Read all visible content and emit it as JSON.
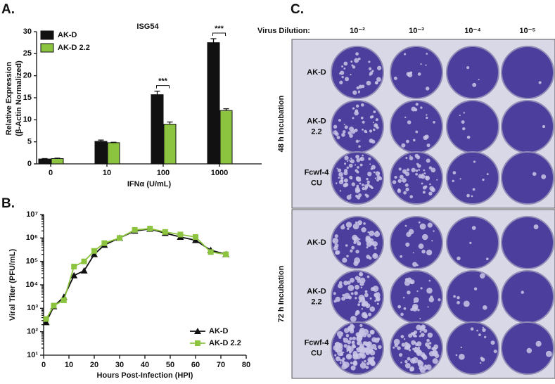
{
  "chart_data": [
    {
      "type": "bar",
      "panel": "A.",
      "title": "ISG54",
      "categories": [
        "0",
        "10",
        "100",
        "1000"
      ],
      "series": [
        {
          "name": "AK-D",
          "color": "#111111",
          "values": [
            1.1,
            5.1,
            15.7,
            27.5
          ],
          "errors": [
            0.1,
            0.3,
            0.8,
            0.9
          ]
        },
        {
          "name": "AK-D 2.2",
          "color": "#8cc43f",
          "values": [
            1.2,
            4.8,
            9.0,
            12.1
          ],
          "errors": [
            0.1,
            0.1,
            0.5,
            0.4
          ]
        }
      ],
      "ylim": [
        0,
        30
      ],
      "yticks": [
        0,
        5,
        10,
        15,
        20,
        25,
        30
      ],
      "y_label": [
        "Relative Expression",
        "(β-Actin Normalized)"
      ],
      "x_label": "IFNα (U/mL)",
      "annotations": [
        {
          "label": "***",
          "x": "100"
        },
        {
          "label": "***",
          "x": "1000"
        }
      ],
      "legend": "top-left"
    },
    {
      "type": "line",
      "panel": "B.",
      "x": [
        1,
        4,
        8,
        12,
        16,
        20,
        24,
        30,
        36,
        42,
        48,
        54,
        60,
        66,
        72
      ],
      "series": [
        {
          "name": "AK-D",
          "color": "#111111",
          "marker": "triangle",
          "values": [
            250,
            1200,
            3000,
            25000,
            40000,
            200000,
            500000,
            1000000,
            2000000,
            2400000,
            1600000,
            1100000,
            800000,
            300000,
            200000
          ]
        },
        {
          "name": "AK-D 2.2",
          "color": "#8cc43f",
          "marker": "square",
          "values": [
            350,
            1300,
            2200,
            60000,
            100000,
            280000,
            600000,
            1000000,
            2200000,
            2500000,
            1800000,
            1400000,
            1100000,
            250000,
            200000
          ]
        }
      ],
      "xlim": [
        0,
        80
      ],
      "xticks": [
        0,
        10,
        20,
        30,
        40,
        50,
        60,
        70,
        80
      ],
      "ylim": [
        10,
        10000000
      ],
      "log_y": true,
      "yticks": [
        {
          "value": 10,
          "label": "10¹"
        },
        {
          "value": 100,
          "label": "10²"
        },
        {
          "value": 1000,
          "label": "10³"
        },
        {
          "value": 10000,
          "label": "10⁴"
        },
        {
          "value": 100000,
          "label": "10⁵"
        },
        {
          "value": 1000000,
          "label": "10⁶"
        },
        {
          "value": 10000000,
          "label": "10⁷"
        }
      ],
      "y_label": "Viral Titer (PFU/mL)",
      "x_label": "Hours Post-Infection (HPI)",
      "legend": "bottom-right"
    }
  ],
  "plate_panel": {
    "panel": "C.",
    "header": "Virus Dilution:",
    "dilutions": [
      "10⁻²",
      "10⁻³",
      "10⁻⁴",
      "10⁻⁵"
    ],
    "groups": [
      {
        "label": "48 h Incubation",
        "rows": [
          [
            "AK-D"
          ],
          [
            "AK-D",
            "2.2"
          ],
          [
            "Fcwf-4",
            "CU"
          ]
        ]
      },
      {
        "label": "72 h Incubation",
        "rows": [
          [
            "AK-D"
          ],
          [
            "AK-D",
            "2.2"
          ],
          [
            "Fcwf-4",
            "CU"
          ]
        ]
      }
    ]
  }
}
